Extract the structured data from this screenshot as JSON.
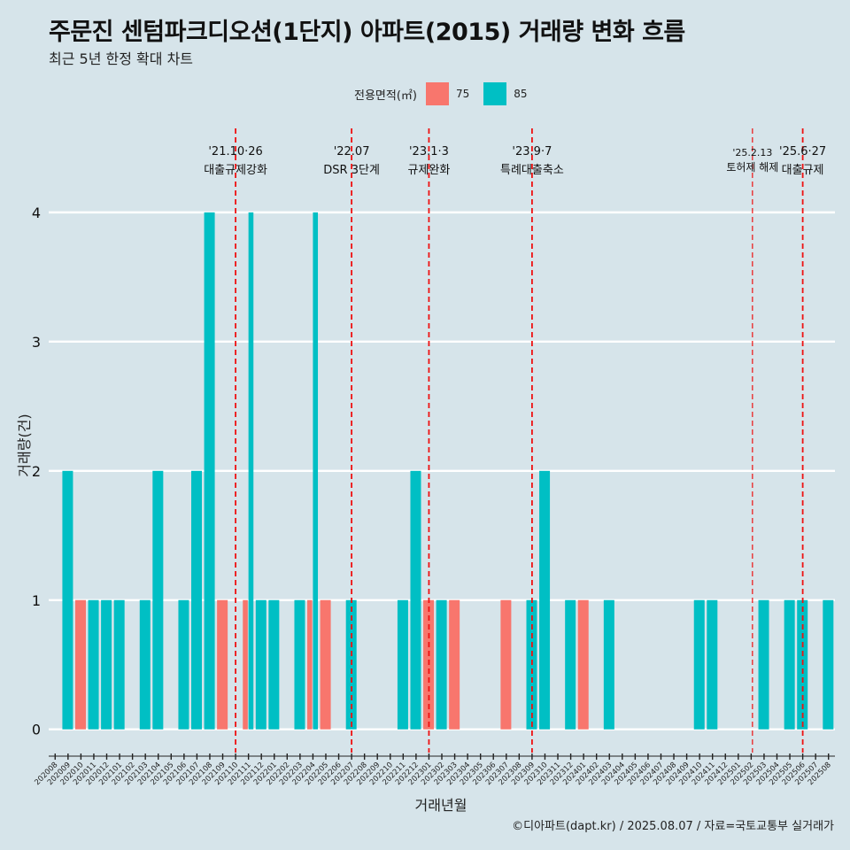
{
  "title": "주문진 센텀파크디오션(1단지) 아파트(2015) 거래량 변화 흐름",
  "subtitle": "최근 5년 한정 확대 차트",
  "legend_title": "전용면적(㎡)",
  "caption": "©디아파트(dapt.kr) / 2025.08.07 / 자료=국토교통부 실거래가",
  "chart_data": {
    "type": "bar",
    "xlabel": "거래년월",
    "ylabel": "거래량(건)",
    "ylim": [
      -0.18,
      4.65
    ],
    "yticks": [
      0,
      1,
      2,
      3,
      4
    ],
    "categories": [
      "202008",
      "202009",
      "202010",
      "202011",
      "202012",
      "202101",
      "202102",
      "202103",
      "202104",
      "202105",
      "202106",
      "202107",
      "202108",
      "202109",
      "202110",
      "202111",
      "202112",
      "202201",
      "202202",
      "202203",
      "202204",
      "202205",
      "202206",
      "202207",
      "202208",
      "202209",
      "202210",
      "202211",
      "202212",
      "202301",
      "202302",
      "202303",
      "202304",
      "202305",
      "202306",
      "202307",
      "202308",
      "202309",
      "202310",
      "202311",
      "202312",
      "202401",
      "202402",
      "202403",
      "202404",
      "202405",
      "202406",
      "202407",
      "202408",
      "202409",
      "202410",
      "202411",
      "202412",
      "202501",
      "202502",
      "202503",
      "202504",
      "202505",
      "202506",
      "202507",
      "202508"
    ],
    "series": [
      {
        "name": "75",
        "color": "#f8766d",
        "values": [
          0,
          0,
          1,
          0,
          0,
          0,
          0,
          0,
          0,
          0,
          0,
          0,
          0,
          1,
          0,
          1,
          0,
          0,
          0,
          0,
          1,
          1,
          0,
          0,
          0,
          0,
          0,
          0,
          0,
          1,
          0,
          1,
          0,
          0,
          0,
          1,
          0,
          0,
          0,
          0,
          0,
          1,
          0,
          0,
          0,
          0,
          0,
          0,
          0,
          0,
          0,
          0,
          0,
          0,
          0,
          0,
          0,
          0,
          0,
          0,
          0
        ]
      },
      {
        "name": "85",
        "color": "#00bfc4",
        "values": [
          0,
          2,
          0,
          1,
          1,
          1,
          0,
          1,
          2,
          0,
          1,
          2,
          4,
          0,
          0,
          4,
          1,
          1,
          0,
          1,
          4,
          0,
          0,
          1,
          0,
          0,
          0,
          1,
          2,
          0,
          1,
          0,
          0,
          0,
          0,
          0,
          0,
          1,
          2,
          0,
          1,
          0,
          0,
          1,
          0,
          0,
          0,
          0,
          0,
          0,
          1,
          1,
          0,
          0,
          0,
          1,
          0,
          1,
          1,
          0,
          1
        ]
      }
    ],
    "events": [
      {
        "month": "202110",
        "date": "'21.10·26",
        "label": "대출규제강화"
      },
      {
        "month": "202207",
        "date": "'22.07",
        "label": "DSR 3단계"
      },
      {
        "month": "202301",
        "date": "'23.1·3",
        "label": "규제완화"
      },
      {
        "month": "202309",
        "date": "'23.9·7",
        "label": "특례대출축소"
      },
      {
        "month": "202502",
        "date": "'25.2.13",
        "label": "토허제 해제"
      },
      {
        "month": "202506",
        "date": "'25.6·27",
        "label": "대출규제"
      }
    ]
  }
}
